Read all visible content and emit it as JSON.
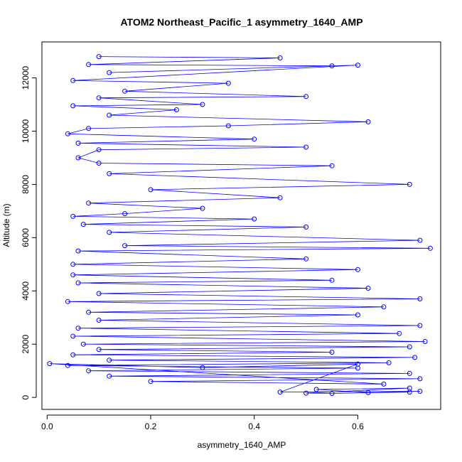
{
  "chart_data": {
    "type": "scatter",
    "title": "ATOM2 Northeast_Pacific_1 asymmetry_1640_AMP",
    "xlabel": "asymmetry_1640_AMP",
    "ylabel": "Altitude (m)",
    "xlim": [
      -0.01,
      0.76
    ],
    "ylim": [
      -450,
      13350
    ],
    "x_ticks": [
      0.0,
      0.2,
      0.4,
      0.6
    ],
    "x_tick_labels": [
      "0.0",
      "0.2",
      "0.4",
      "0.6"
    ],
    "y_ticks": [
      0,
      2000,
      4000,
      6000,
      8000,
      10000,
      12000
    ],
    "y_tick_labels": [
      "0",
      "2000",
      "4000",
      "6000",
      "8000",
      "10000",
      "12000"
    ],
    "grid": false,
    "legend": "none",
    "marker": "open-circle",
    "line": true,
    "colors": {
      "series": "#0000ff",
      "axis": "#000000"
    },
    "x_range_observed": [
      0.005,
      0.75
    ],
    "y_range_observed": [
      150,
      12900
    ],
    "series": [
      {
        "x": [
          0.1,
          0.45,
          0.08,
          0.55,
          0.12,
          0.6,
          0.05,
          0.35,
          0.15,
          0.5,
          0.1,
          0.3,
          0.05,
          0.25,
          0.12,
          0.62,
          0.35,
          0.08,
          0.04,
          0.4,
          0.06,
          0.5,
          0.1,
          0.06,
          0.1,
          0.55,
          0.12,
          0.7,
          0.2,
          0.45,
          0.08,
          0.3,
          0.15,
          0.05,
          0.4,
          0.07,
          0.5,
          0.12,
          0.72,
          0.15,
          0.74,
          0.06,
          0.5,
          0.05,
          0.6,
          0.05,
          0.55,
          0.06,
          0.62,
          0.1,
          0.72,
          0.04,
          0.65,
          0.08,
          0.6,
          0.1,
          0.72,
          0.06,
          0.68,
          0.05,
          0.73,
          0.07,
          0.7,
          0.1,
          0.55,
          0.05,
          0.71,
          0.12,
          0.66,
          0.04,
          0.6,
          0.08,
          0.7,
          0.12,
          0.72,
          0.2,
          0.65,
          0.005,
          0.3,
          0.6,
          0.45,
          0.72,
          0.62,
          0.52,
          0.7,
          0.5,
          0.55,
          0.7
        ],
        "y": [
          12800,
          12750,
          12500,
          12450,
          12200,
          12480,
          11900,
          11800,
          11500,
          11300,
          11250,
          11000,
          10950,
          10800,
          10600,
          10350,
          10200,
          10100,
          9900,
          9700,
          9550,
          9400,
          9300,
          9000,
          8800,
          8700,
          8400,
          8000,
          7800,
          7500,
          7300,
          7100,
          6900,
          6800,
          6700,
          6500,
          6400,
          6200,
          5900,
          5700,
          5600,
          5500,
          5200,
          5000,
          4800,
          4600,
          4400,
          4300,
          4100,
          3900,
          3700,
          3600,
          3400,
          3200,
          3100,
          2900,
          2700,
          2600,
          2400,
          2300,
          2100,
          2000,
          1900,
          1800,
          1700,
          1600,
          1500,
          1400,
          1300,
          1200,
          1100,
          1000,
          900,
          800,
          700,
          600,
          500,
          1270,
          1120,
          1250,
          200,
          230,
          180,
          300,
          350,
          160,
          150,
          200
        ]
      }
    ]
  }
}
